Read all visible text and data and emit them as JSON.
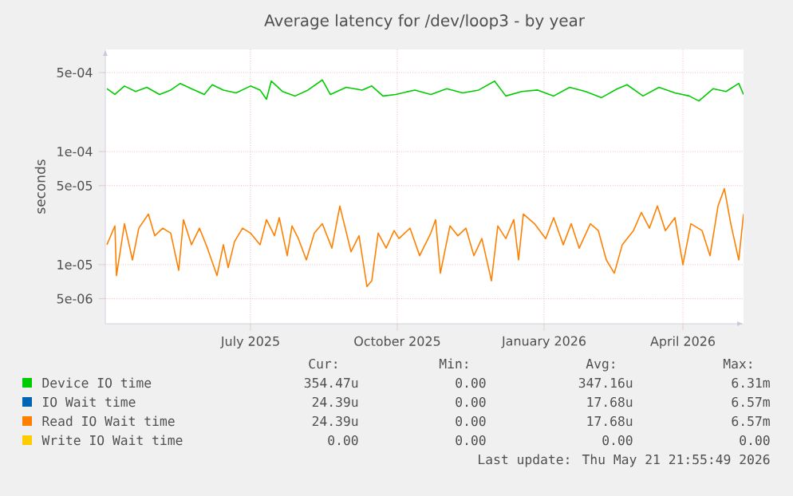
{
  "chart_data": {
    "type": "line",
    "title": "Average latency for /dev/loop3 - by year",
    "ylabel": "seconds",
    "log": "y",
    "grid": true,
    "legend": "bottom",
    "line_style": "solid",
    "marker": "none",
    "xlim": [
      "2025-04-16",
      "2026-05-21"
    ],
    "xticks": [
      {
        "value": "2025-07-16",
        "label": "July 2025"
      },
      {
        "value": "2025-10-16",
        "label": "October 2025"
      },
      {
        "value": "2026-01-16",
        "label": "January 2026"
      },
      {
        "value": "2026-04-13",
        "label": "April 2026"
      }
    ],
    "ylim": [
      3e-06,
      0.0008
    ],
    "yticks": [
      {
        "value": 5e-06,
        "label": "5e-06"
      },
      {
        "value": 1e-05,
        "label": "1e-05"
      },
      {
        "value": 5e-05,
        "label": "5e-05"
      },
      {
        "value": 0.0001,
        "label": "1e-04"
      },
      {
        "value": 0.0005,
        "label": "5e-04"
      }
    ],
    "series": [
      {
        "name": "Device IO time",
        "color": "#00cc00",
        "x": [
          "2025-04-17",
          "2025-04-22",
          "2025-04-28",
          "2025-05-05",
          "2025-05-12",
          "2025-05-20",
          "2025-05-27",
          "2025-06-02",
          "2025-06-09",
          "2025-06-17",
          "2025-06-22",
          "2025-06-29",
          "2025-07-07",
          "2025-07-16",
          "2025-07-22",
          "2025-07-26",
          "2025-07-29",
          "2025-08-05",
          "2025-08-13",
          "2025-08-21",
          "2025-08-30",
          "2025-09-04",
          "2025-09-14",
          "2025-09-24",
          "2025-09-30",
          "2025-10-07",
          "2025-10-15",
          "2025-10-27",
          "2025-11-06",
          "2025-11-16",
          "2025-11-26",
          "2025-12-06",
          "2025-12-16",
          "2025-12-23",
          "2026-01-02",
          "2026-01-12",
          "2026-01-22",
          "2026-02-01",
          "2026-02-11",
          "2026-02-21",
          "2026-03-03",
          "2026-03-09",
          "2026-03-19",
          "2026-03-29",
          "2026-04-08",
          "2026-04-17",
          "2026-04-23",
          "2026-05-02",
          "2026-05-10",
          "2026-05-18",
          "2026-05-21"
        ],
        "values": [
          0.00036,
          0.00032,
          0.00038,
          0.00034,
          0.00037,
          0.00032,
          0.00035,
          0.0004,
          0.00036,
          0.00032,
          0.00039,
          0.00035,
          0.00033,
          0.00038,
          0.00035,
          0.00029,
          0.00042,
          0.00034,
          0.00031,
          0.00035,
          0.00043,
          0.00032,
          0.00037,
          0.00035,
          0.00038,
          0.00031,
          0.00032,
          0.00035,
          0.00032,
          0.00036,
          0.00033,
          0.00035,
          0.00042,
          0.00031,
          0.00034,
          0.00035,
          0.00031,
          0.00037,
          0.00034,
          0.0003,
          0.00036,
          0.00039,
          0.00031,
          0.00037,
          0.00033,
          0.00031,
          0.00028,
          0.00036,
          0.00034,
          0.0004,
          0.00032
        ]
      },
      {
        "name": "IO Wait time",
        "color": "#0066b3"
      },
      {
        "name": "Read IO Wait time",
        "color": "#ff8000",
        "x": [
          "2025-04-17",
          "2025-04-22",
          "2025-04-23",
          "2025-04-28",
          "2025-05-03",
          "2025-05-07",
          "2025-05-13",
          "2025-05-17",
          "2025-05-22",
          "2025-05-27",
          "2025-06-01",
          "2025-06-04",
          "2025-06-09",
          "2025-06-14",
          "2025-06-19",
          "2025-06-25",
          "2025-06-29",
          "2025-07-02",
          "2025-07-06",
          "2025-07-11",
          "2025-07-16",
          "2025-07-22",
          "2025-07-26",
          "2025-07-31",
          "2025-08-03",
          "2025-08-08",
          "2025-08-11",
          "2025-08-15",
          "2025-08-20",
          "2025-08-25",
          "2025-08-30",
          "2025-09-05",
          "2025-09-10",
          "2025-09-17",
          "2025-09-22",
          "2025-09-27",
          "2025-09-30",
          "2025-10-04",
          "2025-10-09",
          "2025-10-14",
          "2025-10-17",
          "2025-10-24",
          "2025-10-30",
          "2025-11-06",
          "2025-11-09",
          "2025-11-12",
          "2025-11-18",
          "2025-11-23",
          "2025-11-28",
          "2025-12-03",
          "2025-12-08",
          "2025-12-14",
          "2025-12-18",
          "2025-12-23",
          "2025-12-28",
          "2025-12-31",
          "2026-01-03",
          "2026-01-10",
          "2026-01-17",
          "2026-01-22",
          "2026-01-28",
          "2026-02-02",
          "2026-02-07",
          "2026-02-14",
          "2026-02-19",
          "2026-02-24",
          "2026-03-01",
          "2026-03-06",
          "2026-03-13",
          "2026-03-18",
          "2026-03-23",
          "2026-03-28",
          "2026-04-02",
          "2026-04-08",
          "2026-04-13",
          "2026-04-18",
          "2026-04-25",
          "2026-04-30",
          "2026-05-05",
          "2026-05-09",
          "2026-05-13",
          "2026-05-18",
          "2026-05-21"
        ],
        "values": [
          1.5e-05,
          2.2e-05,
          8e-06,
          2.3e-05,
          1.1e-05,
          2.1e-05,
          2.8e-05,
          1.8e-05,
          2.1e-05,
          1.9e-05,
          8.9e-06,
          2.5e-05,
          1.5e-05,
          2.1e-05,
          1.4e-05,
          8e-06,
          1.5e-05,
          9.4e-06,
          1.6e-05,
          2.1e-05,
          1.9e-05,
          1.5e-05,
          2.5e-05,
          1.8e-05,
          2.6e-05,
          1.2e-05,
          2.2e-05,
          1.7e-05,
          1.1e-05,
          1.9e-05,
          2.3e-05,
          1.4e-05,
          3.3e-05,
          1.3e-05,
          1.8e-05,
          6.4e-06,
          7.2e-06,
          1.9e-05,
          1.4e-05,
          2e-05,
          1.7e-05,
          2.1e-05,
          1.2e-05,
          1.9e-05,
          2.5e-05,
          8.4e-06,
          2.2e-05,
          1.8e-05,
          2.1e-05,
          1.2e-05,
          1.7e-05,
          7.2e-06,
          2.2e-05,
          1.7e-05,
          2.5e-05,
          1.1e-05,
          2.8e-05,
          2.3e-05,
          1.7e-05,
          2.6e-05,
          1.5e-05,
          2.3e-05,
          1.4e-05,
          2.3e-05,
          2e-05,
          1.1e-05,
          8.4e-06,
          1.5e-05,
          2e-05,
          2.9e-05,
          2.1e-05,
          3.3e-05,
          2e-05,
          2.6e-05,
          1e-05,
          2.3e-05,
          2e-05,
          1.2e-05,
          3.3e-05,
          4.7e-05,
          2.3e-05,
          1.1e-05,
          2.8e-05
        ]
      },
      {
        "name": "Write IO Wait time",
        "color": "#ffcc00"
      }
    ],
    "annotations": [
      "Cur:",
      "Min:",
      "Avg:",
      "Max:",
      "354.47u",
      "0.00",
      "347.16u",
      "6.31m",
      "24.39u",
      "0.00",
      "17.68u",
      "6.57m",
      "24.39u",
      "0.00",
      "17.68u",
      "6.57m",
      "0.00",
      "0.00",
      "0.00",
      "0.00",
      "Last update: Thu May 21 21:55:49 2026"
    ]
  }
}
